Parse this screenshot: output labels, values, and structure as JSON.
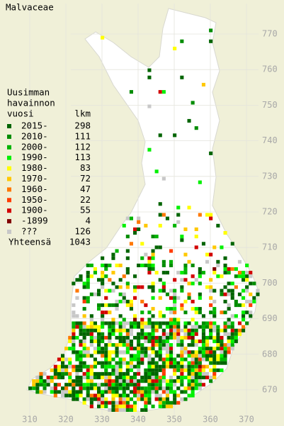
{
  "title": "Malvaceae",
  "legend": {
    "heading": [
      "Uusimman",
      "havainnon"
    ],
    "columns": [
      "vuosi",
      "lkm"
    ],
    "entries": [
      {
        "label": "2015-",
        "count": 298,
        "color": "#006400"
      },
      {
        "label": "2010-",
        "count": 111,
        "color": "#008c00"
      },
      {
        "label": "2000-",
        "count": 112,
        "color": "#00b400"
      },
      {
        "label": "1990-",
        "count": 113,
        "color": "#00f000"
      },
      {
        "label": "1980-",
        "count": 83,
        "color": "#ffff00"
      },
      {
        "label": "1970-",
        "count": 72,
        "color": "#ffc800"
      },
      {
        "label": "1960-",
        "count": 47,
        "color": "#ff7800"
      },
      {
        "label": "1950-",
        "count": 22,
        "color": "#ff3c00"
      },
      {
        "label": "1900-",
        "count": 55,
        "color": "#d20000"
      },
      {
        "label": "-1899",
        "count": 4,
        "color": "#820000"
      },
      {
        "label": "???",
        "count": 126,
        "color": "#c8c8c8"
      }
    ],
    "total_label": "Yhteensä",
    "total": 1043
  },
  "x_ticks": [
    310,
    320,
    330,
    340,
    350,
    360,
    370
  ],
  "y_ticks": [
    670,
    680,
    690,
    700,
    710,
    720,
    730,
    740,
    750,
    760,
    770
  ]
}
